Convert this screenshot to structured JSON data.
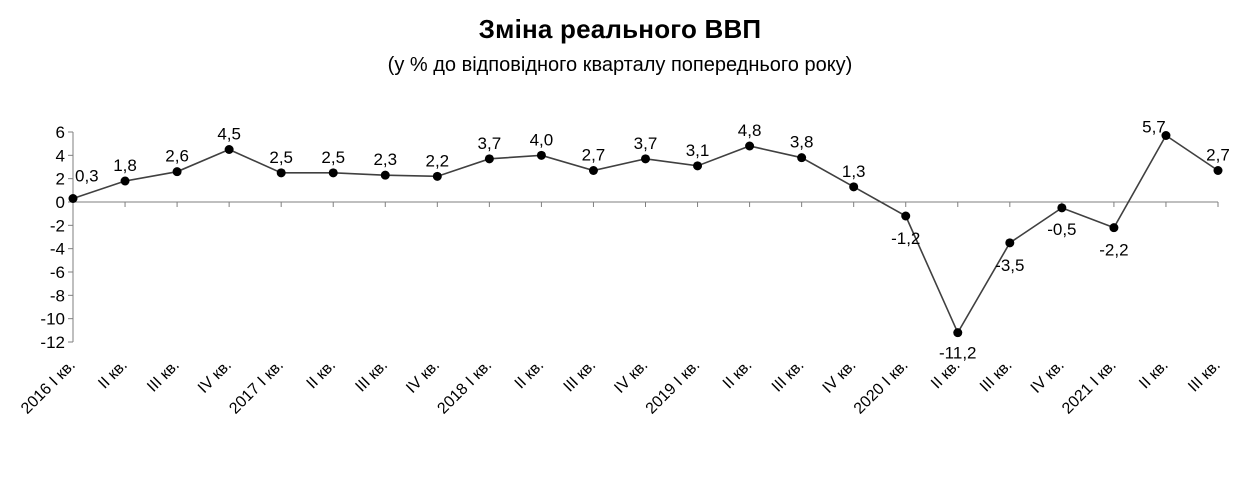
{
  "chart_data": {
    "type": "line",
    "title": "Зміна реального ВВП",
    "subtitle": "(у % до відповідного кварталу попереднього року)",
    "xlabel": "",
    "ylabel": "",
    "ylim": [
      -12,
      6
    ],
    "yticks": [
      6,
      4,
      2,
      0,
      -2,
      -4,
      -6,
      -8,
      -10,
      -12
    ],
    "grid": false,
    "legend": "none",
    "line_color": "#404040",
    "marker_color": "#000000",
    "categories": [
      "2016 I кв.",
      "II кв.",
      "III кв.",
      "IV кв.",
      "2017 I кв.",
      "II кв.",
      "III кв.",
      "IV кв.",
      "2018 I кв.",
      "II кв.",
      "III кв.",
      "IV кв.",
      "2019 I кв.",
      "II кв.",
      "III кв.",
      "IV кв.",
      "2020 I кв.",
      "II кв.",
      "III кв.",
      "IV кв.",
      "2021 I кв.",
      "II кв.",
      "III кв."
    ],
    "values": [
      0.3,
      1.8,
      2.6,
      4.5,
      2.5,
      2.5,
      2.3,
      2.2,
      3.7,
      4.0,
      2.7,
      3.7,
      3.1,
      4.8,
      3.8,
      1.3,
      -1.2,
      -11.2,
      -3.5,
      -0.5,
      -2.2,
      5.7,
      2.7
    ],
    "data_labels": [
      "0,3",
      "1,8",
      "2,6",
      "4,5",
      "2,5",
      "2,5",
      "2,3",
      "2,2",
      "3,7",
      "4,0",
      "2,7",
      "3,7",
      "3,1",
      "4,8",
      "3,8",
      "1,3",
      "-1,2",
      "-11,2",
      "-3,5",
      "-0,5",
      "-2,2",
      "5,7",
      "2,7"
    ]
  }
}
